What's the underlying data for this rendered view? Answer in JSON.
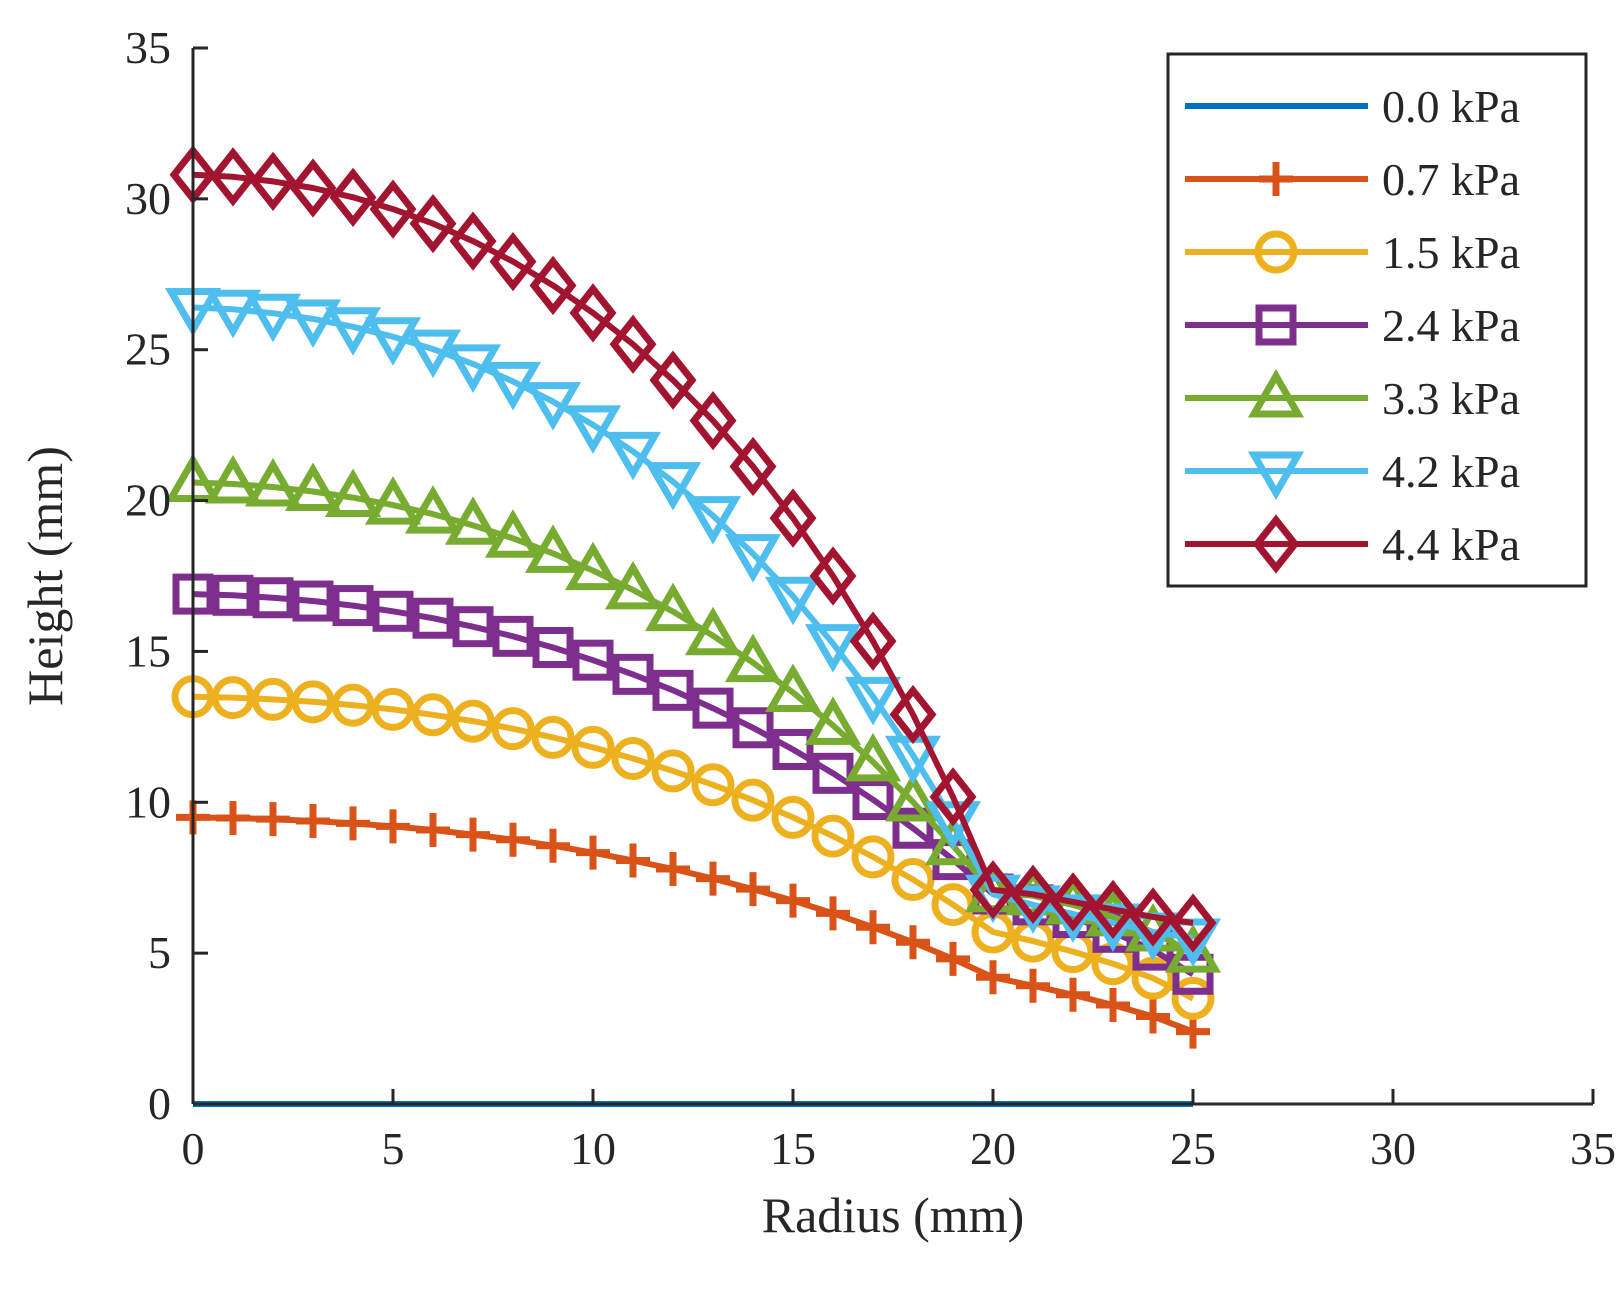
{
  "chart_data": {
    "type": "line",
    "title": "",
    "xlabel": "Radius (mm)",
    "ylabel": "Height (mm)",
    "xlim": [
      0,
      35
    ],
    "ylim": [
      0,
      35
    ],
    "xticks": [
      0,
      5,
      10,
      15,
      20,
      25,
      30,
      35
    ],
    "yticks": [
      0,
      5,
      10,
      15,
      20,
      25,
      30,
      35
    ],
    "grid": false,
    "legend_position": "top-right",
    "series": [
      {
        "name": "0.0 kPa",
        "color": "#0072BD",
        "marker": "none",
        "points": [
          [
            0,
            0
          ],
          [
            25,
            0
          ]
        ]
      },
      {
        "name": "0.7 kPa",
        "color": "#D95319",
        "marker": "plus",
        "points": [
          [
            0,
            9.5
          ],
          [
            1,
            9.48
          ],
          [
            2,
            9.44
          ],
          [
            3,
            9.38
          ],
          [
            4,
            9.3
          ],
          [
            5,
            9.2
          ],
          [
            6,
            9.08
          ],
          [
            7,
            8.93
          ],
          [
            8,
            8.76
          ],
          [
            9,
            8.56
          ],
          [
            10,
            8.33
          ],
          [
            11,
            8.07
          ],
          [
            12,
            7.79
          ],
          [
            13,
            7.47
          ],
          [
            14,
            7.12
          ],
          [
            15,
            6.74
          ],
          [
            16,
            6.32
          ],
          [
            17,
            5.86
          ],
          [
            18,
            5.36
          ],
          [
            19,
            4.81
          ],
          [
            20,
            4.2
          ],
          [
            21,
            3.92
          ],
          [
            22,
            3.62
          ],
          [
            23,
            3.28
          ],
          [
            24,
            2.9
          ],
          [
            25,
            2.4
          ]
        ]
      },
      {
        "name": "1.5 kPa",
        "color": "#EDB120",
        "marker": "circle",
        "points": [
          [
            0,
            13.5
          ],
          [
            1,
            13.47
          ],
          [
            2,
            13.41
          ],
          [
            3,
            13.33
          ],
          [
            4,
            13.22
          ],
          [
            5,
            13.08
          ],
          [
            6,
            12.9
          ],
          [
            7,
            12.69
          ],
          [
            8,
            12.44
          ],
          [
            9,
            12.15
          ],
          [
            10,
            11.82
          ],
          [
            11,
            11.45
          ],
          [
            12,
            11.04
          ],
          [
            13,
            10.58
          ],
          [
            14,
            10.07
          ],
          [
            15,
            9.5
          ],
          [
            16,
            8.88
          ],
          [
            17,
            8.19
          ],
          [
            18,
            7.44
          ],
          [
            19,
            6.61
          ],
          [
            20,
            5.7
          ],
          [
            21,
            5.4
          ],
          [
            22,
            5.05
          ],
          [
            23,
            4.65
          ],
          [
            24,
            4.17
          ],
          [
            25,
            3.5
          ]
        ]
      },
      {
        "name": "2.4 kPa",
        "color": "#7E2F8E",
        "marker": "square",
        "points": [
          [
            0,
            16.9
          ],
          [
            1,
            16.86
          ],
          [
            2,
            16.78
          ],
          [
            3,
            16.67
          ],
          [
            4,
            16.52
          ],
          [
            5,
            16.33
          ],
          [
            6,
            16.1
          ],
          [
            7,
            15.82
          ],
          [
            8,
            15.5
          ],
          [
            9,
            15.13
          ],
          [
            10,
            14.71
          ],
          [
            11,
            14.24
          ],
          [
            12,
            13.71
          ],
          [
            13,
            13.12
          ],
          [
            14,
            12.47
          ],
          [
            15,
            11.75
          ],
          [
            16,
            10.96
          ],
          [
            17,
            10.09
          ],
          [
            18,
            9.14
          ],
          [
            19,
            8.1
          ],
          [
            20,
            6.96
          ],
          [
            21,
            6.6
          ],
          [
            22,
            6.18
          ],
          [
            23,
            5.69
          ],
          [
            24,
            5.1
          ],
          [
            25,
            4.3
          ]
        ]
      },
      {
        "name": "3.3 kPa",
        "color": "#77AC30",
        "marker": "triangle-up",
        "points": [
          [
            0,
            20.6
          ],
          [
            1,
            20.55
          ],
          [
            2,
            20.45
          ],
          [
            3,
            20.3
          ],
          [
            4,
            20.1
          ],
          [
            5,
            19.85
          ],
          [
            6,
            19.55
          ],
          [
            7,
            19.18
          ],
          [
            8,
            18.75
          ],
          [
            9,
            18.25
          ],
          [
            10,
            17.68
          ],
          [
            11,
            17.04
          ],
          [
            12,
            16.32
          ],
          [
            13,
            15.52
          ],
          [
            14,
            14.63
          ],
          [
            15,
            13.64
          ],
          [
            16,
            12.55
          ],
          [
            17,
            11.34
          ],
          [
            18,
            10.01
          ],
          [
            19,
            8.56
          ],
          [
            20,
            7.0
          ],
          [
            21,
            6.9
          ],
          [
            22,
            6.6
          ],
          [
            23,
            6.2
          ],
          [
            24,
            5.7
          ],
          [
            25,
            5.0
          ]
        ]
      },
      {
        "name": "4.2 kPa",
        "color": "#4DBEEE",
        "marker": "triangle-down",
        "points": [
          [
            0,
            26.4
          ],
          [
            1,
            26.34
          ],
          [
            2,
            26.21
          ],
          [
            3,
            26.02
          ],
          [
            4,
            25.76
          ],
          [
            5,
            25.43
          ],
          [
            6,
            25.02
          ],
          [
            7,
            24.53
          ],
          [
            8,
            23.95
          ],
          [
            9,
            23.28
          ],
          [
            10,
            22.51
          ],
          [
            11,
            21.63
          ],
          [
            12,
            20.63
          ],
          [
            13,
            19.5
          ],
          [
            14,
            18.24
          ],
          [
            15,
            16.83
          ],
          [
            16,
            15.26
          ],
          [
            17,
            13.51
          ],
          [
            18,
            11.56
          ],
          [
            19,
            9.39
          ],
          [
            20,
            6.95
          ],
          [
            21,
            6.6
          ],
          [
            22,
            6.3
          ],
          [
            23,
            6.0
          ],
          [
            24,
            5.7
          ],
          [
            25,
            5.5
          ]
        ]
      },
      {
        "name": "4.4 kPa",
        "color": "#A2142F",
        "marker": "diamond",
        "points": [
          [
            0,
            30.8
          ],
          [
            1,
            30.73
          ],
          [
            2,
            30.58
          ],
          [
            3,
            30.36
          ],
          [
            4,
            30.05
          ],
          [
            5,
            29.66
          ],
          [
            6,
            29.18
          ],
          [
            7,
            28.6
          ],
          [
            8,
            27.92
          ],
          [
            9,
            27.13
          ],
          [
            10,
            26.22
          ],
          [
            11,
            25.18
          ],
          [
            12,
            23.99
          ],
          [
            13,
            22.65
          ],
          [
            14,
            21.13
          ],
          [
            15,
            19.42
          ],
          [
            16,
            17.5
          ],
          [
            17,
            15.34
          ],
          [
            18,
            12.91
          ],
          [
            19,
            10.18
          ],
          [
            20,
            7.1
          ],
          [
            21,
            6.95
          ],
          [
            22,
            6.7
          ],
          [
            23,
            6.45
          ],
          [
            24,
            6.2
          ],
          [
            25,
            6.0
          ]
        ]
      }
    ]
  }
}
